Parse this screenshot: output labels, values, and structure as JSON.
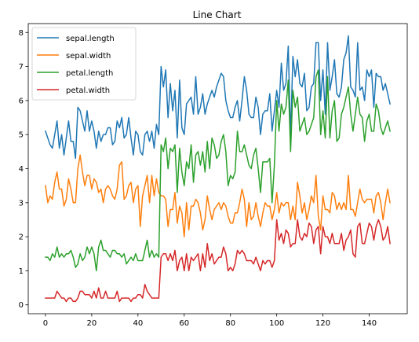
{
  "chart_data": {
    "type": "line",
    "title": "Line Chart",
    "xlabel": "",
    "ylabel": "",
    "xlim": [
      -7.45,
      156.45
    ],
    "ylim": [
      -0.26,
      8.26
    ],
    "xticks": [
      0,
      20,
      40,
      60,
      80,
      100,
      120,
      140
    ],
    "yticks": [
      0,
      1,
      2,
      3,
      4,
      5,
      6,
      7,
      8
    ],
    "grid": false,
    "legend": "top-left",
    "series": [
      {
        "name": "sepal.length",
        "color": "#1f77b4",
        "values": [
          5.1,
          4.9,
          4.7,
          4.6,
          5.0,
          5.4,
          4.6,
          5.0,
          4.4,
          4.9,
          5.4,
          4.8,
          4.8,
          4.3,
          5.8,
          5.7,
          5.4,
          5.1,
          5.7,
          5.1,
          5.4,
          5.1,
          4.6,
          5.1,
          4.8,
          5.0,
          5.0,
          5.2,
          5.2,
          4.7,
          4.8,
          5.4,
          5.2,
          5.5,
          4.9,
          5.0,
          5.5,
          4.9,
          4.4,
          5.1,
          5.0,
          4.5,
          4.4,
          5.0,
          5.1,
          4.8,
          5.1,
          4.6,
          5.3,
          5.0,
          7.0,
          6.4,
          6.9,
          5.5,
          6.5,
          5.7,
          6.3,
          4.9,
          6.6,
          5.2,
          5.0,
          5.9,
          6.0,
          6.1,
          5.6,
          6.7,
          5.6,
          5.8,
          6.2,
          5.6,
          5.9,
          6.1,
          6.3,
          6.1,
          6.4,
          6.6,
          6.8,
          6.7,
          6.0,
          5.7,
          5.5,
          5.5,
          5.8,
          6.0,
          5.4,
          6.0,
          6.7,
          6.3,
          5.6,
          5.5,
          5.5,
          6.1,
          5.8,
          5.0,
          5.6,
          5.7,
          5.7,
          6.2,
          5.1,
          5.7,
          6.3,
          5.8,
          7.1,
          6.3,
          6.5,
          7.6,
          4.9,
          7.3,
          6.7,
          7.2,
          6.5,
          6.4,
          6.8,
          5.7,
          5.8,
          6.4,
          6.5,
          7.7,
          7.7,
          6.0,
          6.9,
          5.6,
          7.7,
          6.3,
          6.7,
          7.2,
          6.2,
          6.1,
          6.4,
          7.2,
          7.4,
          7.9,
          6.4,
          6.3,
          6.1,
          7.7,
          6.3,
          6.4,
          6.0,
          6.9,
          6.7,
          6.9,
          5.8,
          6.8,
          6.7,
          6.7,
          6.3,
          6.5,
          6.2,
          5.9
        ]
      },
      {
        "name": "sepal.width",
        "color": "#ff7f0e",
        "values": [
          3.5,
          3.0,
          3.2,
          3.1,
          3.6,
          3.9,
          3.4,
          3.4,
          2.9,
          3.1,
          3.7,
          3.4,
          3.0,
          3.0,
          4.0,
          4.4,
          3.9,
          3.5,
          3.8,
          3.8,
          3.4,
          3.7,
          3.6,
          3.3,
          3.4,
          3.0,
          3.4,
          3.5,
          3.4,
          3.2,
          3.1,
          3.4,
          4.1,
          4.2,
          3.1,
          3.2,
          3.5,
          3.6,
          3.0,
          3.4,
          3.5,
          2.3,
          3.2,
          3.5,
          3.8,
          3.0,
          3.8,
          3.2,
          3.7,
          3.3,
          3.2,
          3.2,
          3.1,
          2.3,
          2.8,
          2.8,
          3.3,
          2.4,
          2.9,
          2.7,
          2.0,
          3.0,
          2.2,
          2.9,
          2.9,
          3.1,
          3.0,
          2.7,
          2.2,
          2.5,
          3.2,
          2.8,
          2.5,
          2.8,
          2.9,
          3.0,
          2.8,
          3.0,
          2.9,
          2.6,
          2.4,
          2.4,
          2.7,
          2.7,
          3.0,
          3.4,
          3.1,
          2.3,
          3.0,
          2.5,
          2.6,
          3.0,
          2.6,
          2.3,
          2.7,
          3.0,
          2.9,
          2.9,
          2.5,
          2.8,
          3.3,
          2.7,
          3.0,
          2.9,
          3.0,
          3.0,
          2.5,
          2.9,
          2.5,
          3.6,
          3.2,
          2.7,
          3.0,
          2.5,
          2.8,
          3.2,
          3.0,
          3.8,
          2.6,
          2.2,
          3.2,
          2.8,
          2.8,
          2.7,
          3.3,
          3.2,
          2.8,
          3.0,
          2.8,
          3.0,
          2.8,
          3.8,
          2.8,
          2.8,
          2.6,
          3.0,
          3.4,
          3.1,
          3.0,
          3.1,
          3.1,
          3.1,
          2.7,
          3.2,
          3.3,
          3.0,
          2.5,
          3.0,
          3.4,
          3.0
        ]
      },
      {
        "name": "petal.length",
        "color": "#2ca02c",
        "values": [
          1.4,
          1.4,
          1.3,
          1.5,
          1.4,
          1.7,
          1.4,
          1.5,
          1.4,
          1.5,
          1.5,
          1.6,
          1.4,
          1.1,
          1.2,
          1.5,
          1.3,
          1.4,
          1.7,
          1.5,
          1.7,
          1.5,
          1.0,
          1.7,
          1.9,
          1.6,
          1.6,
          1.5,
          1.4,
          1.6,
          1.6,
          1.5,
          1.5,
          1.4,
          1.5,
          1.2,
          1.3,
          1.4,
          1.3,
          1.5,
          1.3,
          1.3,
          1.3,
          1.6,
          1.9,
          1.4,
          1.6,
          1.4,
          1.5,
          1.4,
          4.7,
          4.5,
          4.9,
          4.0,
          4.6,
          4.5,
          4.7,
          3.3,
          4.6,
          3.9,
          3.5,
          4.2,
          4.0,
          4.7,
          3.6,
          4.4,
          4.5,
          4.1,
          4.5,
          3.9,
          4.8,
          4.0,
          4.9,
          4.7,
          4.3,
          4.4,
          4.8,
          5.0,
          4.5,
          3.5,
          3.8,
          3.7,
          3.9,
          5.1,
          4.5,
          4.5,
          4.7,
          4.4,
          4.1,
          4.0,
          4.4,
          4.6,
          4.0,
          3.3,
          4.2,
          4.2,
          4.2,
          4.3,
          3.0,
          4.1,
          6.0,
          5.1,
          5.9,
          5.6,
          5.8,
          6.6,
          4.5,
          6.3,
          5.8,
          6.1,
          5.1,
          5.3,
          5.5,
          5.0,
          5.1,
          5.3,
          5.5,
          6.7,
          6.9,
          5.0,
          5.7,
          4.9,
          6.7,
          4.9,
          5.7,
          6.0,
          4.8,
          4.9,
          5.6,
          5.8,
          6.1,
          6.4,
          5.6,
          5.1,
          5.6,
          6.1,
          5.6,
          5.5,
          4.8,
          5.4,
          5.6,
          5.1,
          5.1,
          5.9,
          5.7,
          5.2,
          5.0,
          5.2,
          5.4,
          5.1
        ]
      },
      {
        "name": "petal.width",
        "color": "#d62728",
        "values": [
          0.2,
          0.2,
          0.2,
          0.2,
          0.2,
          0.4,
          0.3,
          0.2,
          0.2,
          0.1,
          0.2,
          0.2,
          0.1,
          0.1,
          0.2,
          0.4,
          0.4,
          0.3,
          0.3,
          0.3,
          0.2,
          0.4,
          0.2,
          0.5,
          0.2,
          0.2,
          0.4,
          0.2,
          0.2,
          0.2,
          0.2,
          0.4,
          0.1,
          0.2,
          0.2,
          0.2,
          0.2,
          0.1,
          0.2,
          0.2,
          0.3,
          0.3,
          0.2,
          0.6,
          0.4,
          0.3,
          0.2,
          0.2,
          0.2,
          0.2,
          1.4,
          1.5,
          1.5,
          1.3,
          1.5,
          1.3,
          1.6,
          1.0,
          1.3,
          1.4,
          1.0,
          1.5,
          1.0,
          1.4,
          1.3,
          1.4,
          1.5,
          1.0,
          1.5,
          1.1,
          1.8,
          1.3,
          1.5,
          1.2,
          1.3,
          1.4,
          1.4,
          1.7,
          1.5,
          1.0,
          1.1,
          1.0,
          1.2,
          1.6,
          1.5,
          1.6,
          1.5,
          1.3,
          1.3,
          1.3,
          1.2,
          1.4,
          1.2,
          1.0,
          1.3,
          1.2,
          1.3,
          1.3,
          1.1,
          1.3,
          2.5,
          1.9,
          2.1,
          1.8,
          2.2,
          2.1,
          1.7,
          1.8,
          1.8,
          2.5,
          2.0,
          1.9,
          2.1,
          2.0,
          2.4,
          2.3,
          1.8,
          2.2,
          2.3,
          1.5,
          2.3,
          2.0,
          2.0,
          1.8,
          2.1,
          1.8,
          1.8,
          1.8,
          2.1,
          1.6,
          1.9,
          2.0,
          2.2,
          1.5,
          1.4,
          2.3,
          2.4,
          1.8,
          1.8,
          2.1,
          2.4,
          2.3,
          1.9,
          2.3,
          2.5,
          2.3,
          1.9,
          2.0,
          2.3,
          1.8
        ]
      }
    ]
  }
}
